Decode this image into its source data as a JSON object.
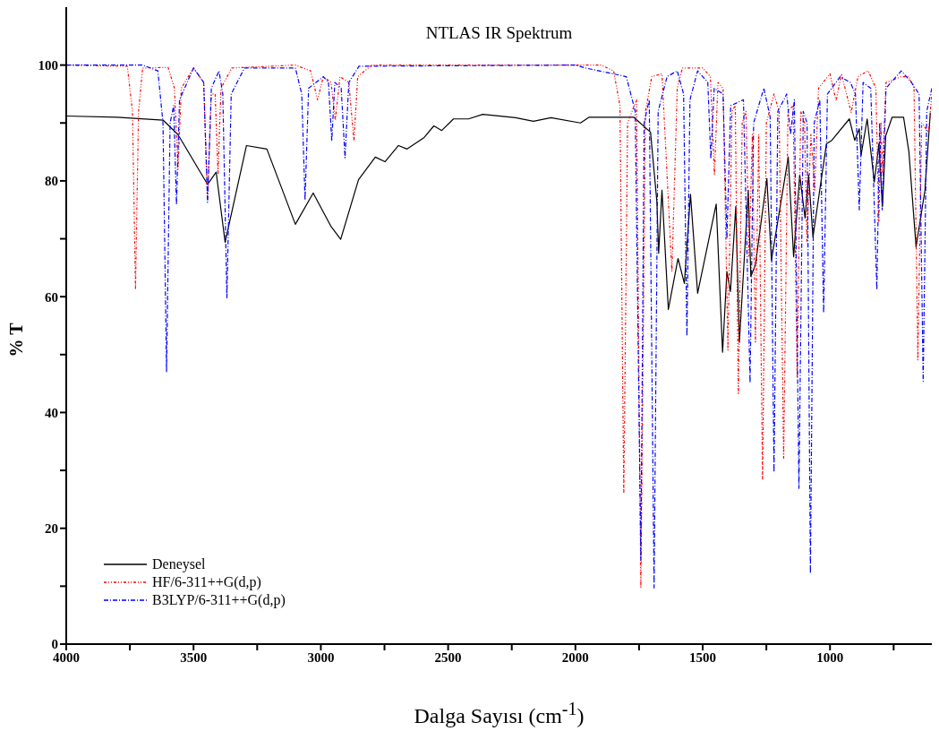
{
  "chart_data": {
    "type": "line",
    "title": "NTLAS IR Spektrum",
    "xlabel": "Dalga Sayısı (cm$^{-1}$)",
    "ylabel": "% T",
    "xlim": [
      4000,
      600
    ],
    "xticks": [
      4000,
      {
        "value": 3750,
        "label": null
      },
      3500,
      {
        "value": 3250,
        "label": null
      },
      3000,
      {
        "value": 2750,
        "label": null
      },
      2500,
      {
        "value": 2250,
        "label": null
      },
      2000,
      {
        "value": 1750,
        "label": null
      },
      1500,
      {
        "value": 1250,
        "label": null
      },
      1000,
      {
        "value": 750,
        "label": null
      }
    ],
    "ylim": [
      0,
      110
    ],
    "yticks": [
      0,
      {
        "value": 10,
        "label": null
      },
      20,
      {
        "value": 30,
        "label": null
      },
      40,
      {
        "value": 50,
        "label": null
      },
      60,
      {
        "value": 70,
        "label": null
      },
      80,
      {
        "value": 90,
        "label": null
      },
      100
    ],
    "legend": "bottom left",
    "marker": "none",
    "series": [
      {
        "name": "Deneysel",
        "color": "#000000",
        "line_style": "solid",
        "x": [
          4000,
          3800,
          3620,
          3561,
          3445,
          3411,
          3376,
          3292,
          3212,
          3100,
          3030,
          2961,
          2922,
          2852,
          2786,
          2748,
          2695,
          2661,
          2594,
          2556,
          2525,
          2479,
          2420,
          2364,
          2235,
          2165,
          2096,
          1980,
          1946,
          1771,
          1705,
          1680,
          1673,
          1660,
          1635,
          1597,
          1572,
          1548,
          1520,
          1447,
          1422,
          1405,
          1391,
          1370,
          1356,
          1321,
          1311,
          1293,
          1248,
          1230,
          1164,
          1143,
          1119,
          1098,
          1084,
          1067,
          1014,
          993,
          924,
          903,
          885,
          878,
          854,
          826,
          808,
          794,
          781,
          756,
          711,
          690,
          662,
          627,
          606
        ],
        "values": [
          91.2,
          91,
          90.5,
          88,
          79.4,
          81.5,
          69.4,
          86.1,
          85.5,
          72.5,
          77.9,
          72.2,
          69.9,
          80.2,
          84.1,
          83.3,
          86.1,
          85.5,
          87.5,
          89.5,
          88.7,
          90.7,
          90.7,
          91.5,
          90.9,
          90.3,
          90.9,
          90,
          91,
          91,
          88.4,
          76.4,
          67.5,
          78.4,
          57.8,
          66.6,
          62.3,
          77.7,
          60.6,
          76,
          50.4,
          64.3,
          60.9,
          75.6,
          52.1,
          78.4,
          63.5,
          65.5,
          80.4,
          66.3,
          84.1,
          66.9,
          81,
          73.6,
          81,
          70.3,
          86.4,
          87,
          90.7,
          87,
          89,
          84.4,
          90.7,
          79.8,
          86.4,
          75.6,
          87.8,
          91,
          91,
          85,
          68.6,
          78.4,
          91.8
        ]
      },
      {
        "name": "HF/6-311++G(d,p)",
        "color": "#ff0000",
        "line_style": "dotted",
        "x": [
          4000,
          3760,
          3740,
          3728,
          3716,
          3700,
          3600,
          3575,
          3561,
          3548,
          3500,
          3460,
          3445,
          3430,
          3415,
          3404,
          3392,
          3350,
          3100,
          3040,
          3013,
          2990,
          2960,
          2943,
          2925,
          2890,
          2870,
          2855,
          2800,
          1900,
          1850,
          1825,
          1810,
          1795,
          1760,
          1743,
          1725,
          1700,
          1660,
          1621,
          1600,
          1580,
          1500,
          1470,
          1454,
          1440,
          1420,
          1401,
          1385,
          1372,
          1360,
          1345,
          1330,
          1318,
          1305,
          1293,
          1280,
          1265,
          1250,
          1220,
          1200,
          1182,
          1165,
          1145,
          1129,
          1115,
          1100,
          1091,
          1075,
          1060,
          1045,
          1000,
          976,
          955,
          917,
          890,
          850,
          820,
          808,
          800,
          794,
          780,
          720,
          690,
          670,
          655,
          640,
          613,
          600
        ],
        "values": [
          100,
          99.8,
          92,
          61.2,
          92,
          99.5,
          99.6,
          96,
          82,
          96,
          99.5,
          97,
          76.7,
          95,
          95,
          81.3,
          96,
          99.5,
          100,
          99,
          94,
          98,
          97,
          90.5,
          98,
          97,
          86.9,
          98,
          100,
          100,
          99,
          93,
          26,
          90,
          94,
          9.7,
          92,
          98,
          98.5,
          64.3,
          96,
          99.5,
          99.5,
          98,
          81,
          97,
          96,
          50.8,
          92,
          93,
          43.1,
          90,
          92,
          67,
          88,
          52,
          88,
          28.3,
          90,
          95,
          92,
          32,
          92,
          93,
          46,
          92,
          90,
          69.5,
          88,
          78.4,
          96,
          98.5,
          93.8,
          98.5,
          91.8,
          98,
          99,
          96,
          73,
          90,
          81.5,
          97,
          98,
          98,
          96,
          49.1,
          90,
          88.4,
          95
        ]
      },
      {
        "name": "B3LYP/6-311++G(d,p)",
        "color": "#0000ff",
        "line_style": "dashed",
        "x": [
          4000,
          3700,
          3640,
          3620,
          3606,
          3592,
          3578,
          3567,
          3555,
          3500,
          3460,
          3445,
          3430,
          3400,
          3385,
          3369,
          3352,
          3300,
          3100,
          3075,
          3062,
          3048,
          2990,
          2970,
          2957,
          2945,
          2920,
          2905,
          2890,
          2850,
          2000,
          1960,
          1800,
          1765,
          1743,
          1730,
          1710,
          1691,
          1675,
          1640,
          1600,
          1575,
          1562,
          1550,
          1520,
          1480,
          1468,
          1455,
          1420,
          1405,
          1390,
          1340,
          1314,
          1300,
          1260,
          1235,
          1220,
          1205,
          1170,
          1155,
          1140,
          1122,
          1105,
          1090,
          1077,
          1062,
          1040,
          1025,
          1010,
          960,
          920,
          900,
          885,
          870,
          840,
          816,
          805,
          795,
          780,
          720,
          680,
          650,
          634,
          620,
          600
        ],
        "values": [
          100,
          100,
          99,
          90,
          47,
          90,
          93,
          75.9,
          94,
          99.5,
          97,
          76.3,
          96,
          99,
          95,
          59.8,
          95,
          99.5,
          99.5,
          95,
          76.7,
          96,
          98,
          97,
          86.9,
          97,
          96,
          84,
          97,
          99.8,
          100,
          99.5,
          98,
          92,
          14.5,
          90,
          94,
          9.7,
          92,
          98,
          99,
          95,
          53.2,
          94,
          99,
          97,
          83.8,
          96,
          95,
          70,
          93,
          94,
          45.1,
          90,
          96,
          91,
          29.7,
          92,
          95,
          88,
          94,
          26.9,
          92,
          90,
          12.2,
          90,
          94,
          57.2,
          95,
          98,
          97,
          95,
          75,
          97,
          96,
          61.2,
          90,
          75,
          96,
          99,
          97,
          95,
          45.4,
          92,
          96
        ]
      }
    ]
  }
}
